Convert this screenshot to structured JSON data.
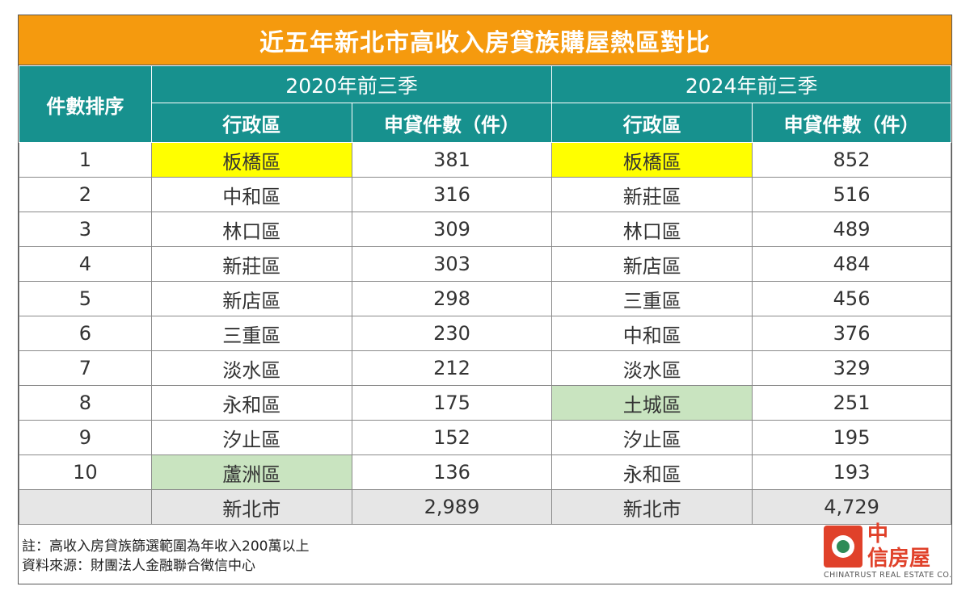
{
  "title": "近五年新北市高收入房貸族購屋熱區對比",
  "header": {
    "rank_label": "件數排序",
    "group_2020": "2020年前三季",
    "group_2024": "2024年前三季",
    "district_label": "行政區",
    "count_label": "申貸件數（件）"
  },
  "rows": [
    {
      "rank": "1",
      "d2020": "板橋區",
      "c2020": "381",
      "d2024": "板橋區",
      "c2024": "852"
    },
    {
      "rank": "2",
      "d2020": "中和區",
      "c2020": "316",
      "d2024": "新莊區",
      "c2024": "516"
    },
    {
      "rank": "3",
      "d2020": "林口區",
      "c2020": "309",
      "d2024": "林口區",
      "c2024": "489"
    },
    {
      "rank": "4",
      "d2020": "新莊區",
      "c2020": "303",
      "d2024": "新店區",
      "c2024": "484"
    },
    {
      "rank": "5",
      "d2020": "新店區",
      "c2020": "298",
      "d2024": "三重區",
      "c2024": "456"
    },
    {
      "rank": "6",
      "d2020": "三重區",
      "c2020": "230",
      "d2024": "中和區",
      "c2024": "376"
    },
    {
      "rank": "7",
      "d2020": "淡水區",
      "c2020": "212",
      "d2024": "淡水區",
      "c2024": "329"
    },
    {
      "rank": "8",
      "d2020": "永和區",
      "c2020": "175",
      "d2024": "土城區",
      "c2024": "251"
    },
    {
      "rank": "9",
      "d2020": "汐止區",
      "c2020": "152",
      "d2024": "汐止區",
      "c2024": "195"
    },
    {
      "rank": "10",
      "d2020": "蘆洲區",
      "c2020": "136",
      "d2024": "永和區",
      "c2024": "193"
    }
  ],
  "total": {
    "d2020": "新北市",
    "c2020": "2,989",
    "d2024": "新北市",
    "c2024": "4,729"
  },
  "highlights": {
    "yellow": "#FFFF00",
    "green": "#C9E4C0",
    "header": "#17918E",
    "title": "#F59A0E"
  },
  "notes": {
    "note": "註：高收入房貸族篩選範圍為年收入200萬以上",
    "source": "資料來源：財團法人金融聯合徵信中心"
  },
  "logo": {
    "name_line1": "中",
    "name_line2": "信房屋",
    "sub": "CHINATRUST REAL ESTATE CO."
  }
}
